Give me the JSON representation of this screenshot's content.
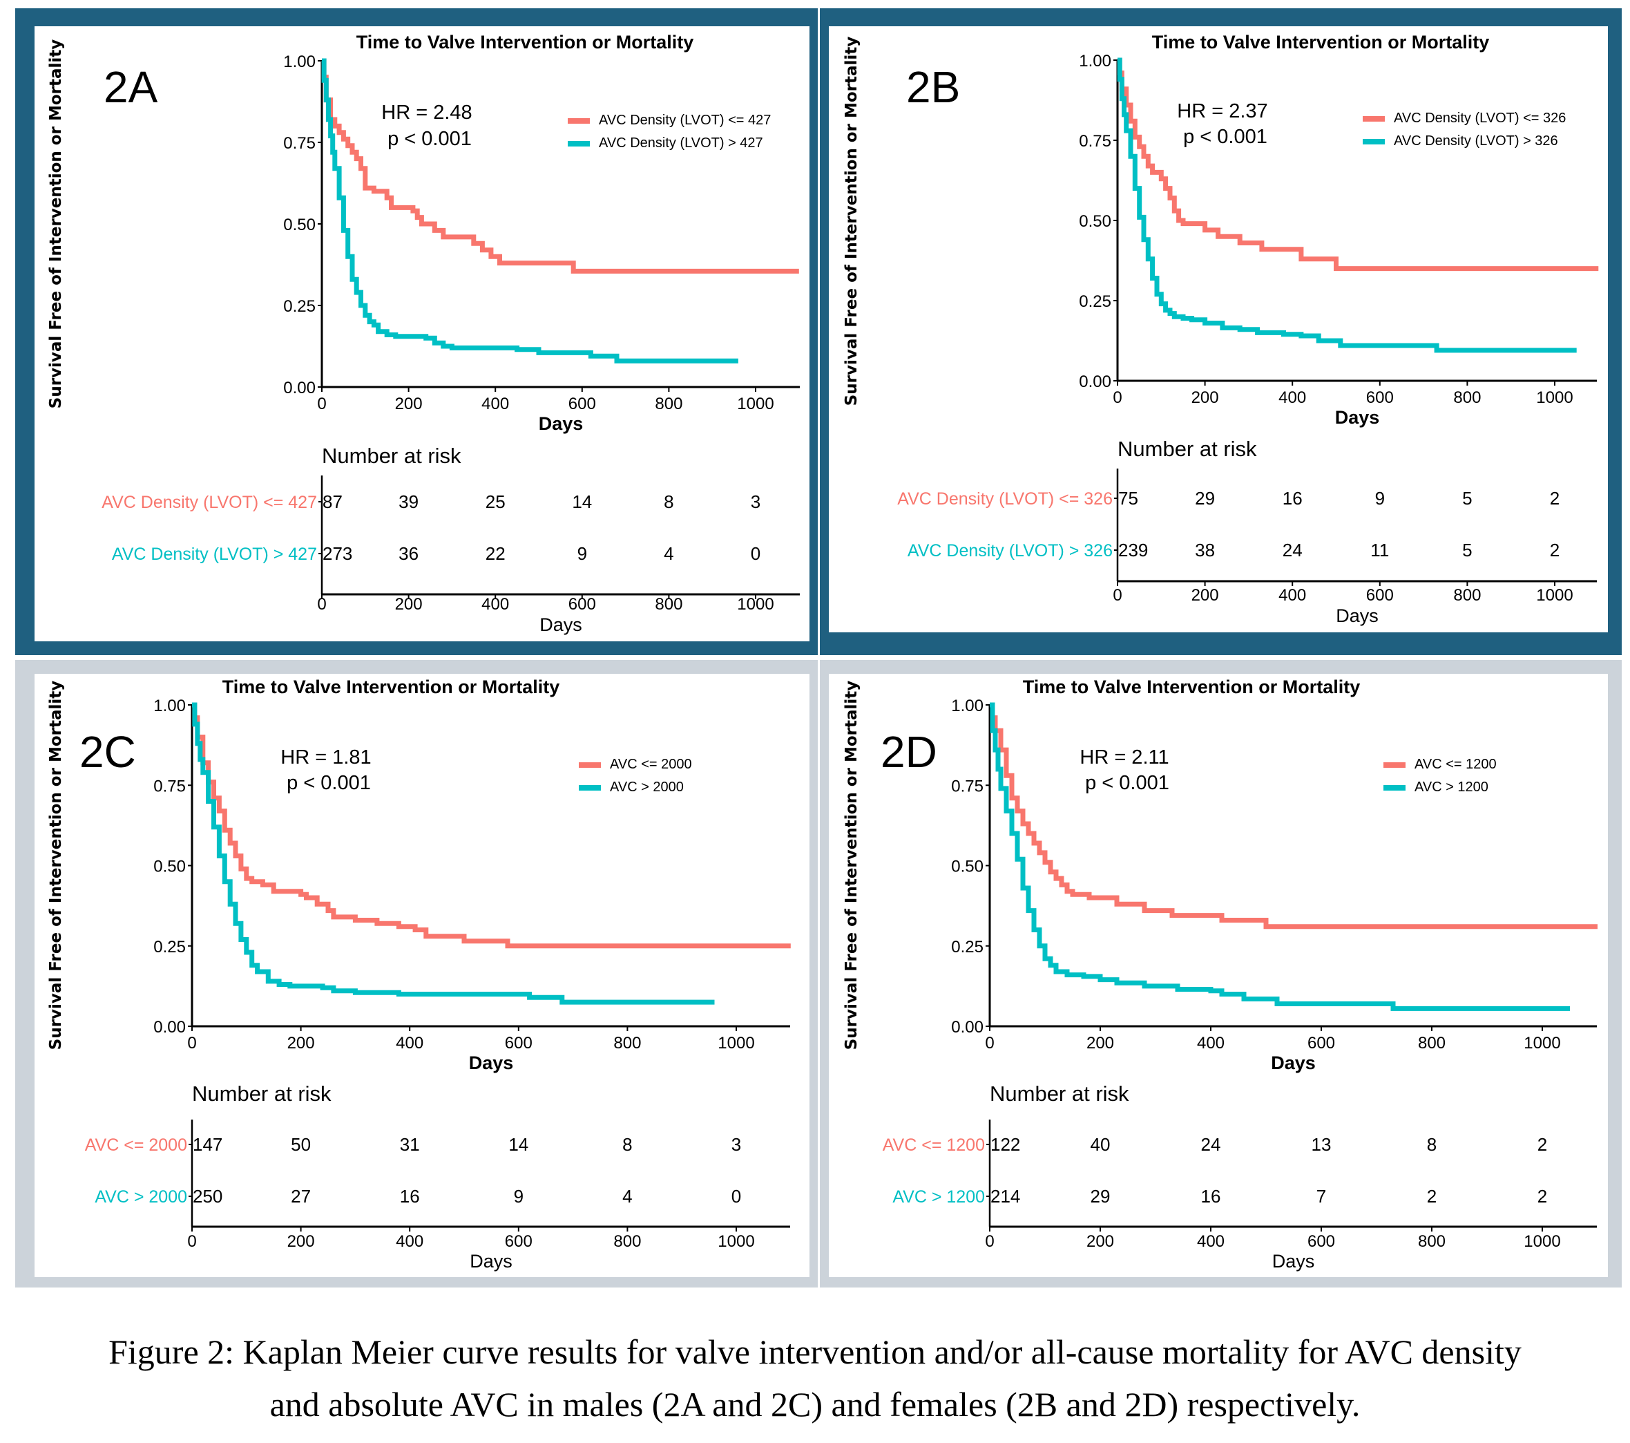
{
  "colors": {
    "series_low": "#F8766D",
    "series_high": "#00BFC4",
    "frame_top": "#1F6080",
    "frame_bottom": "#CCD3DA",
    "axis": "#000000"
  },
  "caption": {
    "line1": "Figure 2: Kaplan Meier curve results for valve intervention and/or all-cause mortality for AVC density",
    "line2": "and absolute AVC in males (2A and 2C) and females (2B and 2D) respectively."
  },
  "chart_data": [
    {
      "type": "line",
      "panel_label": "2A",
      "title": "Time to Valve Intervention or Mortality",
      "xlabel": "Days",
      "ylabel": "Survival Free of Intervention or Mortality",
      "xlim": [
        0,
        1100
      ],
      "ylim": [
        0,
        1
      ],
      "x_ticks": [
        "0",
        "200",
        "400",
        "600",
        "800",
        "1000"
      ],
      "y_ticks": [
        "0.00",
        "0.25",
        "0.50",
        "0.75",
        "1.00"
      ],
      "annotation": {
        "hr": "HR = 2.48",
        "p": "p < 0.001"
      },
      "legend_position": "top-right",
      "series": [
        {
          "name": "AVC Density (LVOT) <= 427",
          "color_key": "series_low",
          "x": [
            0,
            5,
            10,
            20,
            30,
            40,
            50,
            60,
            70,
            80,
            90,
            100,
            120,
            150,
            160,
            180,
            210,
            220,
            230,
            260,
            280,
            310,
            340,
            350,
            370,
            390,
            410,
            430,
            580,
            1100
          ],
          "y": [
            1.0,
            0.95,
            0.88,
            0.82,
            0.8,
            0.78,
            0.76,
            0.74,
            0.72,
            0.7,
            0.67,
            0.61,
            0.6,
            0.58,
            0.55,
            0.55,
            0.54,
            0.52,
            0.5,
            0.48,
            0.46,
            0.46,
            0.46,
            0.44,
            0.42,
            0.4,
            0.38,
            0.38,
            0.355,
            0.355
          ]
        },
        {
          "name": "AVC Density (LVOT) > 427",
          "color_key": "series_high",
          "x": [
            0,
            5,
            10,
            15,
            20,
            25,
            30,
            40,
            50,
            60,
            70,
            80,
            90,
            100,
            110,
            120,
            130,
            150,
            170,
            200,
            240,
            260,
            280,
            300,
            400,
            450,
            500,
            600,
            620,
            680,
            960
          ],
          "y": [
            1.0,
            0.94,
            0.88,
            0.82,
            0.77,
            0.72,
            0.67,
            0.58,
            0.48,
            0.4,
            0.33,
            0.29,
            0.25,
            0.22,
            0.2,
            0.19,
            0.17,
            0.16,
            0.155,
            0.155,
            0.15,
            0.135,
            0.125,
            0.12,
            0.12,
            0.115,
            0.105,
            0.105,
            0.095,
            0.08,
            0.08
          ]
        }
      ],
      "risk_table": {
        "title": "Number at risk",
        "xlabel": "Days",
        "times": [
          0,
          200,
          400,
          600,
          800,
          1000
        ],
        "rows": [
          {
            "label": "AVC Density (LVOT) <= 427",
            "color_key": "series_low",
            "values": [
              "87",
              "39",
              "25",
              "14",
              "8",
              "3"
            ]
          },
          {
            "label": "AVC Density (LVOT) > 427",
            "color_key": "series_high",
            "values": [
              "273",
              "36",
              "22",
              "9",
              "4",
              "0"
            ]
          }
        ]
      }
    },
    {
      "type": "line",
      "panel_label": "2B",
      "title": "Time to Valve Intervention or Mortality",
      "xlabel": "Days",
      "ylabel": "Survival Free of Intervention or Mortality",
      "xlim": [
        0,
        1100
      ],
      "ylim": [
        0,
        1
      ],
      "x_ticks": [
        "0",
        "200",
        "400",
        "600",
        "800",
        "1000"
      ],
      "y_ticks": [
        "0.00",
        "0.25",
        "0.50",
        "0.75",
        "1.00"
      ],
      "annotation": {
        "hr": "HR = 2.37",
        "p": "p < 0.001"
      },
      "legend_position": "top-right",
      "series": [
        {
          "name": "AVC Density (LVOT) <= 326",
          "color_key": "series_low",
          "x": [
            0,
            5,
            10,
            20,
            30,
            40,
            50,
            60,
            70,
            80,
            90,
            100,
            110,
            120,
            130,
            140,
            150,
            190,
            200,
            230,
            280,
            330,
            420,
            500,
            1100
          ],
          "y": [
            1.0,
            0.96,
            0.91,
            0.86,
            0.81,
            0.76,
            0.73,
            0.7,
            0.67,
            0.65,
            0.65,
            0.63,
            0.6,
            0.57,
            0.53,
            0.5,
            0.49,
            0.49,
            0.47,
            0.45,
            0.43,
            0.41,
            0.38,
            0.35,
            0.35
          ]
        },
        {
          "name": "AVC Density (LVOT) > 326",
          "color_key": "series_high",
          "x": [
            0,
            5,
            10,
            15,
            20,
            30,
            40,
            50,
            60,
            70,
            80,
            90,
            100,
            110,
            120,
            130,
            150,
            170,
            200,
            240,
            280,
            320,
            380,
            420,
            460,
            510,
            600,
            730,
            1050
          ],
          "y": [
            1.0,
            0.94,
            0.88,
            0.83,
            0.78,
            0.7,
            0.6,
            0.51,
            0.44,
            0.38,
            0.32,
            0.27,
            0.24,
            0.22,
            0.21,
            0.2,
            0.195,
            0.19,
            0.18,
            0.165,
            0.16,
            0.15,
            0.145,
            0.14,
            0.125,
            0.11,
            0.11,
            0.095,
            0.095
          ]
        }
      ],
      "risk_table": {
        "title": "Number at risk",
        "xlabel": "Days",
        "times": [
          0,
          200,
          400,
          600,
          800,
          1000
        ],
        "rows": [
          {
            "label": "AVC Density (LVOT) <= 326",
            "color_key": "series_low",
            "values": [
              "75",
              "29",
              "16",
              "9",
              "5",
              "2"
            ]
          },
          {
            "label": "AVC Density (LVOT) > 326",
            "color_key": "series_high",
            "values": [
              "239",
              "38",
              "24",
              "11",
              "5",
              "2"
            ]
          }
        ]
      }
    },
    {
      "type": "line",
      "panel_label": "2C",
      "title": "Time to Valve Intervention or Mortality",
      "xlabel": "Days",
      "ylabel": "Survival Free of Intervention or Mortality",
      "xlim": [
        0,
        1100
      ],
      "ylim": [
        0,
        1
      ],
      "x_ticks": [
        "0",
        "200",
        "400",
        "600",
        "800",
        "1000"
      ],
      "y_ticks": [
        "0.00",
        "0.25",
        "0.50",
        "0.75",
        "1.00"
      ],
      "annotation": {
        "hr": "HR = 1.81",
        "p": "p < 0.001"
      },
      "legend_position": "top-right",
      "series": [
        {
          "name": "AVC <= 2000",
          "color_key": "series_low",
          "x": [
            0,
            5,
            10,
            20,
            30,
            40,
            50,
            60,
            70,
            80,
            90,
            100,
            110,
            130,
            150,
            200,
            210,
            230,
            250,
            260,
            300,
            340,
            380,
            410,
            430,
            500,
            580,
            1100
          ],
          "y": [
            1.0,
            0.96,
            0.9,
            0.82,
            0.76,
            0.71,
            0.67,
            0.61,
            0.57,
            0.53,
            0.49,
            0.46,
            0.45,
            0.44,
            0.42,
            0.41,
            0.4,
            0.38,
            0.36,
            0.34,
            0.33,
            0.32,
            0.31,
            0.3,
            0.28,
            0.265,
            0.25,
            0.25
          ]
        },
        {
          "name": "AVC > 2000",
          "color_key": "series_high",
          "x": [
            0,
            5,
            10,
            15,
            20,
            30,
            40,
            50,
            60,
            70,
            80,
            90,
            100,
            110,
            120,
            140,
            160,
            180,
            240,
            260,
            300,
            380,
            620,
            680,
            960
          ],
          "y": [
            1.0,
            0.94,
            0.88,
            0.83,
            0.79,
            0.7,
            0.62,
            0.53,
            0.45,
            0.38,
            0.32,
            0.27,
            0.23,
            0.19,
            0.17,
            0.14,
            0.13,
            0.125,
            0.12,
            0.11,
            0.105,
            0.1,
            0.09,
            0.075,
            0.075
          ]
        }
      ],
      "risk_table": {
        "title": "Number at risk",
        "xlabel": "Days",
        "times": [
          0,
          200,
          400,
          600,
          800,
          1000
        ],
        "rows": [
          {
            "label": "AVC <= 2000",
            "color_key": "series_low",
            "values": [
              "147",
              "50",
              "31",
              "14",
              "8",
              "3"
            ]
          },
          {
            "label": "AVC > 2000",
            "color_key": "series_high",
            "values": [
              "250",
              "27",
              "16",
              "9",
              "4",
              "0"
            ]
          }
        ]
      }
    },
    {
      "type": "line",
      "panel_label": "2D",
      "title": "Time to Valve Intervention or Mortality",
      "xlabel": "Days",
      "ylabel": "Survival Free of Intervention or Mortality",
      "xlim": [
        0,
        1100
      ],
      "ylim": [
        0,
        1
      ],
      "x_ticks": [
        "0",
        "200",
        "400",
        "600",
        "800",
        "1000"
      ],
      "y_ticks": [
        "0.00",
        "0.25",
        "0.50",
        "0.75",
        "1.00"
      ],
      "annotation": {
        "hr": "HR = 2.11",
        "p": "p < 0.001"
      },
      "legend_position": "top-right",
      "series": [
        {
          "name": "AVC <= 1200",
          "color_key": "series_low",
          "x": [
            0,
            5,
            10,
            20,
            30,
            40,
            50,
            60,
            70,
            80,
            90,
            100,
            110,
            120,
            130,
            140,
            150,
            180,
            230,
            260,
            280,
            330,
            420,
            500,
            1100
          ],
          "y": [
            1.0,
            0.96,
            0.92,
            0.86,
            0.78,
            0.71,
            0.67,
            0.63,
            0.6,
            0.57,
            0.54,
            0.51,
            0.48,
            0.46,
            0.44,
            0.42,
            0.41,
            0.4,
            0.38,
            0.38,
            0.36,
            0.345,
            0.33,
            0.31,
            0.31
          ]
        },
        {
          "name": "AVC > 1200",
          "color_key": "series_high",
          "x": [
            0,
            5,
            10,
            15,
            20,
            30,
            40,
            50,
            60,
            70,
            80,
            90,
            100,
            110,
            120,
            140,
            170,
            200,
            230,
            280,
            340,
            400,
            420,
            460,
            520,
            600,
            730,
            1050
          ],
          "y": [
            1.0,
            0.92,
            0.86,
            0.8,
            0.74,
            0.67,
            0.6,
            0.52,
            0.43,
            0.36,
            0.3,
            0.25,
            0.21,
            0.19,
            0.17,
            0.16,
            0.155,
            0.145,
            0.135,
            0.125,
            0.115,
            0.11,
            0.1,
            0.085,
            0.07,
            0.07,
            0.055,
            0.055
          ]
        }
      ],
      "risk_table": {
        "title": "Number at risk",
        "xlabel": "Days",
        "times": [
          0,
          200,
          400,
          600,
          800,
          1000
        ],
        "rows": [
          {
            "label": "AVC <= 1200",
            "color_key": "series_low",
            "values": [
              "122",
              "40",
              "24",
              "13",
              "8",
              "2"
            ]
          },
          {
            "label": "AVC > 1200",
            "color_key": "series_high",
            "values": [
              "214",
              "29",
              "16",
              "7",
              "2",
              "2"
            ]
          }
        ]
      }
    }
  ]
}
